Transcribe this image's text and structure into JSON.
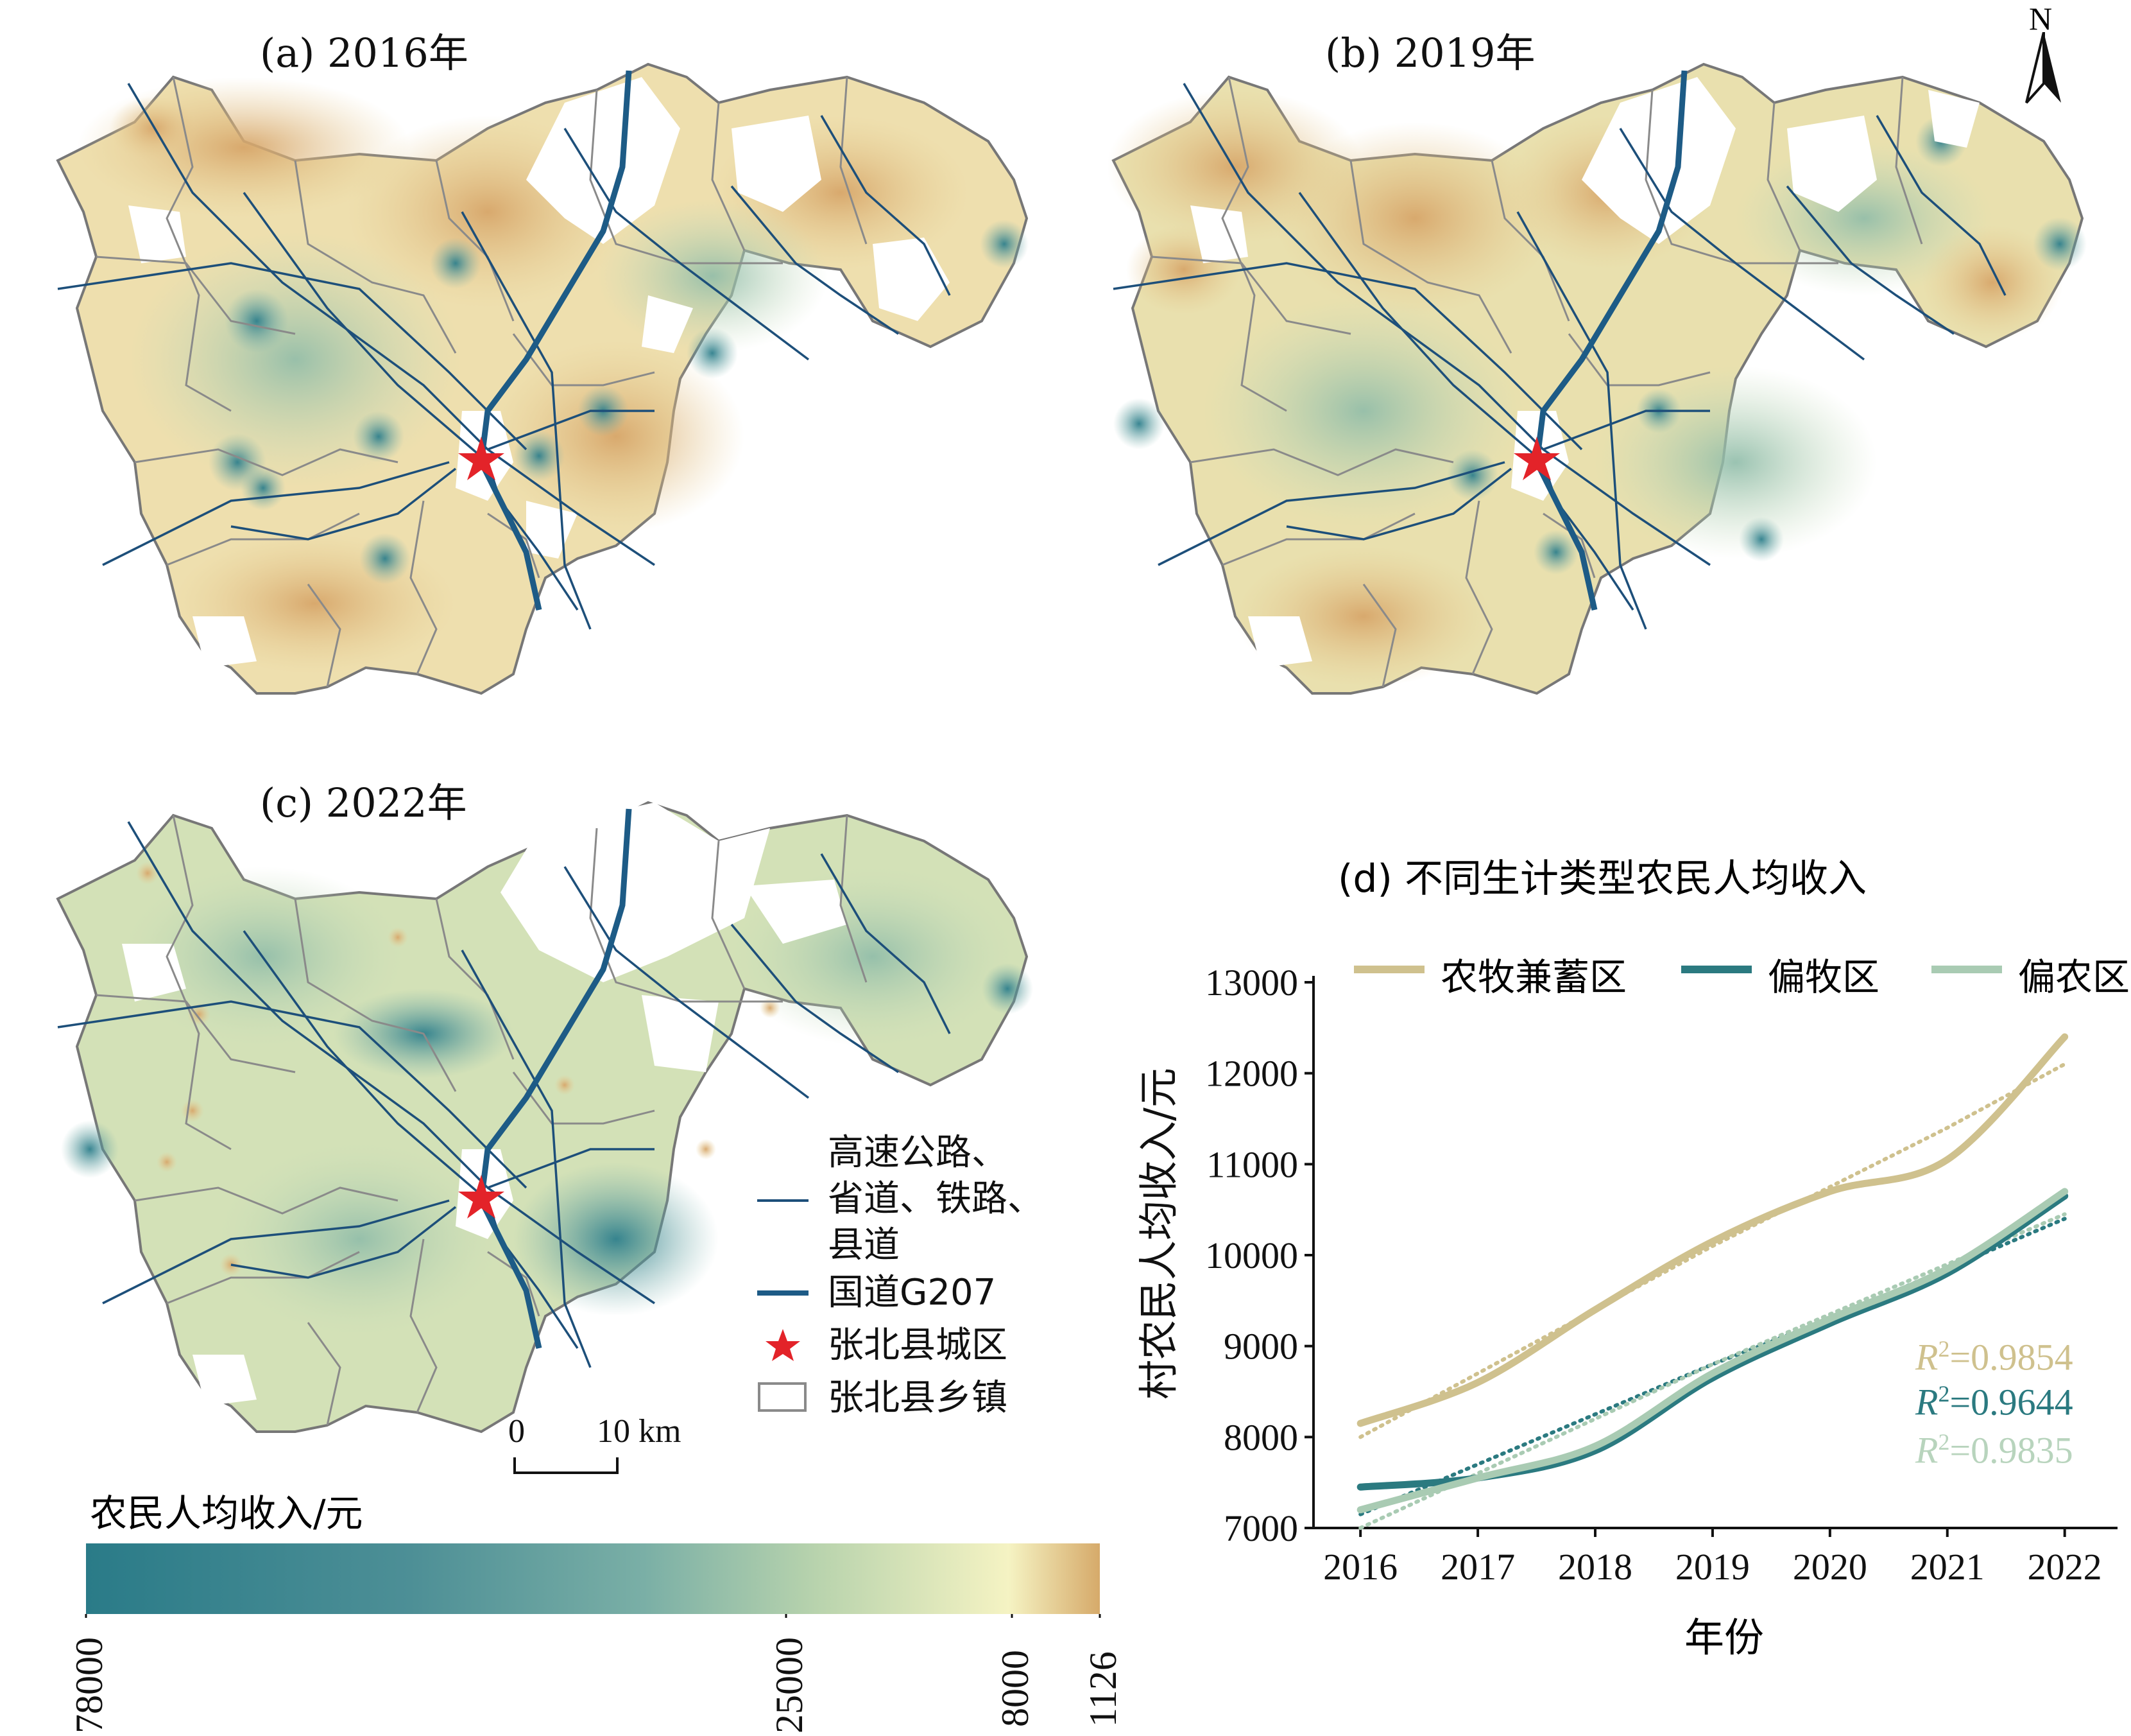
{
  "panels": [
    {
      "title": "(a) 2016年"
    },
    {
      "title": "(b) 2019年"
    },
    {
      "title": "(c) 2022年"
    }
  ],
  "north_label": "N",
  "map_legend": {
    "roads": "高速公路、省道、铁路、县道",
    "roads_line1": "高速公路、",
    "roads_line2": "省道、铁路、",
    "roads_line3": "县道",
    "national_road": "国道G207",
    "county_town": "张北县城区",
    "townships": "张北县乡镇"
  },
  "scale_bar": {
    "zero": "0",
    "distance": "10 km"
  },
  "color_legend": {
    "title": "农民人均收入/元",
    "ticks": [
      "78000",
      "25000",
      "8000",
      "1126"
    ],
    "colors": [
      "#2e7f8c",
      "#6ea8a4",
      "#f4f2c0",
      "#d7ad6e"
    ]
  },
  "chart_data": {
    "type": "line",
    "title": "(d) 不同生计类型农民人均收入",
    "xlabel": "年份",
    "ylabel": "村农民人均收入/元",
    "x": [
      2016,
      2017,
      2018,
      2019,
      2020,
      2021,
      2022
    ],
    "ylim": [
      7000,
      13000
    ],
    "yticks": [
      7000,
      8000,
      9000,
      10000,
      11000,
      12000,
      13000
    ],
    "legend_placement": "top",
    "series": [
      {
        "name": "农牧兼蓄区",
        "color": "#cfc18e",
        "values": [
          8150,
          8600,
          9400,
          10150,
          10700,
          11050,
          12400
        ],
        "trend": [
          8000,
          8700,
          9400,
          10100,
          10750,
          11400,
          12100
        ],
        "r2": "R²=0.9854",
        "r2_sym": "R",
        "r2_val": "=0.9854"
      },
      {
        "name": "偏牧区",
        "color": "#2b7a80",
        "values": [
          7450,
          7550,
          7850,
          8650,
          9250,
          9800,
          10650
        ],
        "trend": [
          7150,
          7700,
          8250,
          8800,
          9300,
          9850,
          10400
        ],
        "r2": "R²=0.9644",
        "r2_sym": "R",
        "r2_val": "=0.9644"
      },
      {
        "name": "偏农区",
        "color": "#a9cbb3",
        "values": [
          7200,
          7550,
          7900,
          8700,
          9300,
          9850,
          10700
        ],
        "trend": [
          7000,
          7600,
          8200,
          8800,
          9350,
          9900,
          10450
        ],
        "r2": "R²=0.9835",
        "r2_sym": "R",
        "r2_val": "=0.9835"
      }
    ]
  }
}
